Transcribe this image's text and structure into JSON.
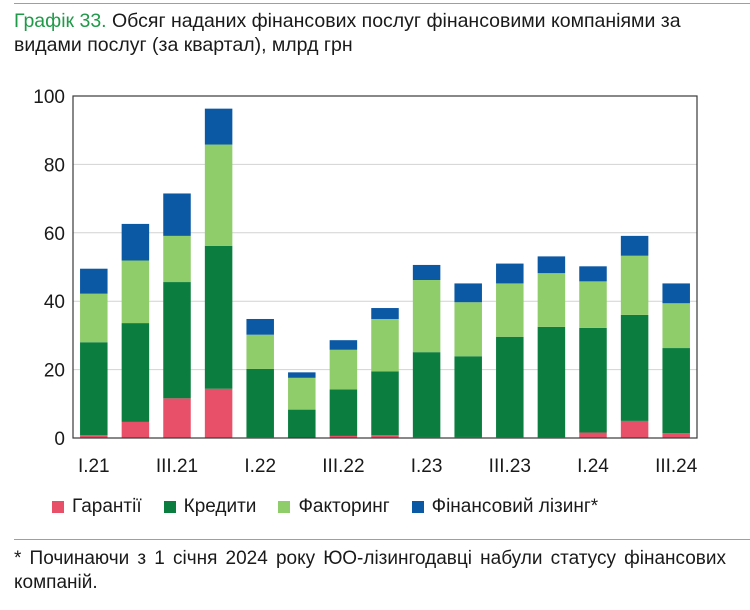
{
  "title": {
    "label": "Графік 33.",
    "text": "Обсяг наданих фінансових послуг фінансовими компаніями за видами послуг (за квартал), млрд грн"
  },
  "chart_data": {
    "type": "bar",
    "stacked": true,
    "categories": [
      "I.21",
      "II.21",
      "III.21",
      "IV.21",
      "I.22",
      "II.22",
      "III.22",
      "IV.22",
      "I.23",
      "II.23",
      "III.23",
      "IV.23",
      "I.24",
      "II.24",
      "III.24"
    ],
    "tick_labels": [
      "I.21",
      "",
      "III.21",
      "",
      "I.22",
      "",
      "III.22",
      "",
      "I.23",
      "",
      "III.23",
      "",
      "I.24",
      "",
      "III.24"
    ],
    "ylim": [
      0,
      100
    ],
    "yticks": [
      0,
      20,
      40,
      60,
      80,
      100
    ],
    "grid": true,
    "legend_position": "bottom",
    "series": [
      {
        "name": "Гарантії",
        "color": "#e8506a",
        "values": [
          0.8,
          4.7,
          11.6,
          14.4,
          0.2,
          0.1,
          0.6,
          0.8,
          0.3,
          0.3,
          0.2,
          0.2,
          1.6,
          5.0,
          1.4
        ]
      },
      {
        "name": "Кредити",
        "color": "#0b7e3f",
        "values": [
          27.2,
          28.9,
          34.0,
          41.8,
          20.0,
          8.2,
          13.6,
          18.7,
          24.8,
          23.6,
          29.4,
          32.3,
          30.6,
          31.0,
          24.9
        ]
      },
      {
        "name": "Факторинг",
        "color": "#8fcc6a",
        "values": [
          14.2,
          18.3,
          13.5,
          29.6,
          10.0,
          9.3,
          11.6,
          15.3,
          21.1,
          15.8,
          15.6,
          15.7,
          13.6,
          17.3,
          13.1
        ]
      },
      {
        "name": "Фінансовий лізинг*",
        "color": "#0b58a4",
        "values": [
          7.3,
          10.7,
          12.4,
          10.5,
          4.6,
          1.6,
          2.8,
          3.2,
          4.4,
          5.5,
          5.8,
          4.9,
          4.4,
          5.8,
          5.8
        ]
      }
    ]
  },
  "footnote": "* Починаючи з 1 січня 2024 року ЮО-лізингодавці набули статусу фінансових компаній."
}
